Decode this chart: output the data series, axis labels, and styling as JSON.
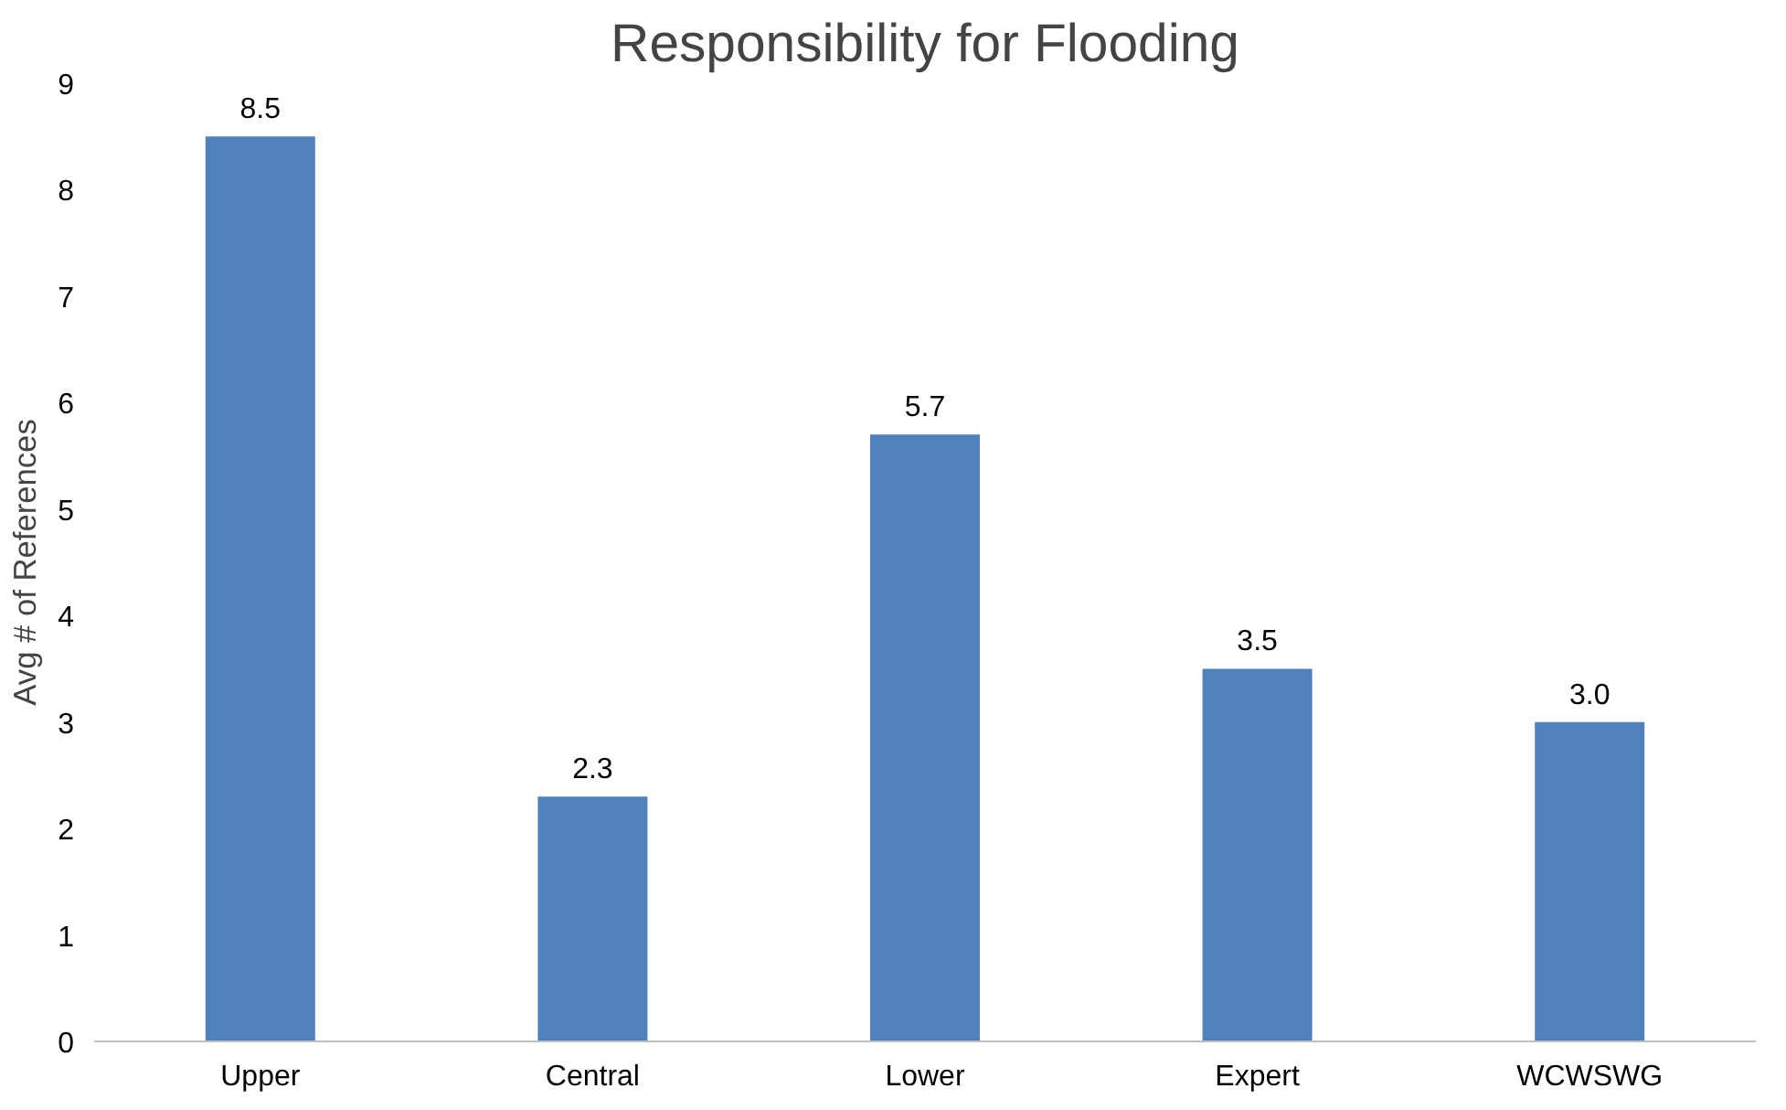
{
  "chart_data": {
    "type": "bar",
    "title": "Responsibility for Flooding",
    "ylabel": "Avg # of References",
    "categories": [
      "Upper",
      "Central",
      "Lower",
      "Expert",
      "WCWSWG"
    ],
    "values": [
      8.5,
      2.3,
      5.7,
      3.5,
      3.0
    ],
    "value_labels": [
      "8.5",
      "2.3",
      "5.7",
      "3.5",
      "3.0"
    ],
    "color": "#4f81bd",
    "ylim": [
      0,
      9
    ],
    "yticks": [
      0,
      1,
      2,
      3,
      4,
      5,
      6,
      7,
      8,
      9
    ],
    "grid": false
  }
}
